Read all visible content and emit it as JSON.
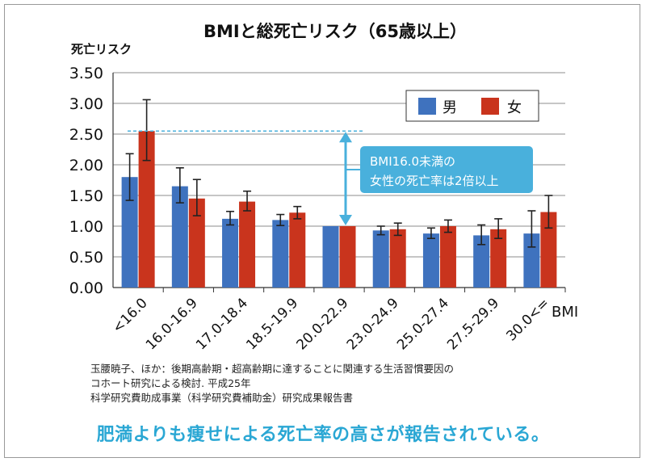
{
  "chart_data": {
    "type": "bar",
    "title": "BMIと総死亡リスク（65歳以上）",
    "ylabel": "死亡リスク",
    "xlabel": "BMI",
    "ylim": [
      0,
      3.5
    ],
    "yticks": [
      "0.00",
      "0.50",
      "1.00",
      "1.50",
      "2.00",
      "2.50",
      "3.00",
      "3.50"
    ],
    "categories": [
      "<16.0",
      "16.0-16.9",
      "17.0-18.4",
      "18.5-19.9",
      "20.0-22.9",
      "23.0-24.9",
      "25.0-27.4",
      "27.5-29.9",
      "30.0<="
    ],
    "series": [
      {
        "name": "男",
        "color": "#3f72be",
        "values": [
          1.8,
          1.65,
          1.12,
          1.1,
          1.0,
          0.93,
          0.88,
          0.85,
          0.88
        ],
        "err_low": [
          1.42,
          1.38,
          1.02,
          1.01,
          1.0,
          0.86,
          0.8,
          0.7,
          0.66
        ],
        "err_high": [
          2.18,
          1.95,
          1.24,
          1.19,
          1.0,
          1.0,
          0.97,
          1.02,
          1.25
        ]
      },
      {
        "name": "女",
        "color": "#c9341d",
        "values": [
          2.55,
          1.45,
          1.4,
          1.22,
          1.0,
          0.95,
          1.0,
          0.95,
          1.23
        ],
        "err_low": [
          2.07,
          1.17,
          1.25,
          1.12,
          1.0,
          0.85,
          0.9,
          0.8,
          0.97
        ],
        "err_high": [
          3.06,
          1.76,
          1.57,
          1.32,
          1.0,
          1.05,
          1.1,
          1.12,
          1.5
        ]
      }
    ],
    "annotation": {
      "text_line1": "BMI16.0未満の",
      "text_line2": "女性の死亡率は2倍以上",
      "reference_value": 2.55,
      "baseline_value": 1.0,
      "color": "#49b0dc"
    }
  },
  "source": {
    "line1": "玉腰暁子、ほか：後期高齢期・超高齢期に達することに関連する生活習慣要因の",
    "line2": "コホート研究による検討. 平成25年",
    "line3": "科学研究費助成事業（科学研究費補助金）研究成果報告書"
  },
  "footer": "肥満よりも痩せによる死亡率の高さが報告されている。",
  "colors": {
    "grid": "#8c8c8c",
    "axis": "#333333",
    "footer": "#2aa7d4"
  }
}
